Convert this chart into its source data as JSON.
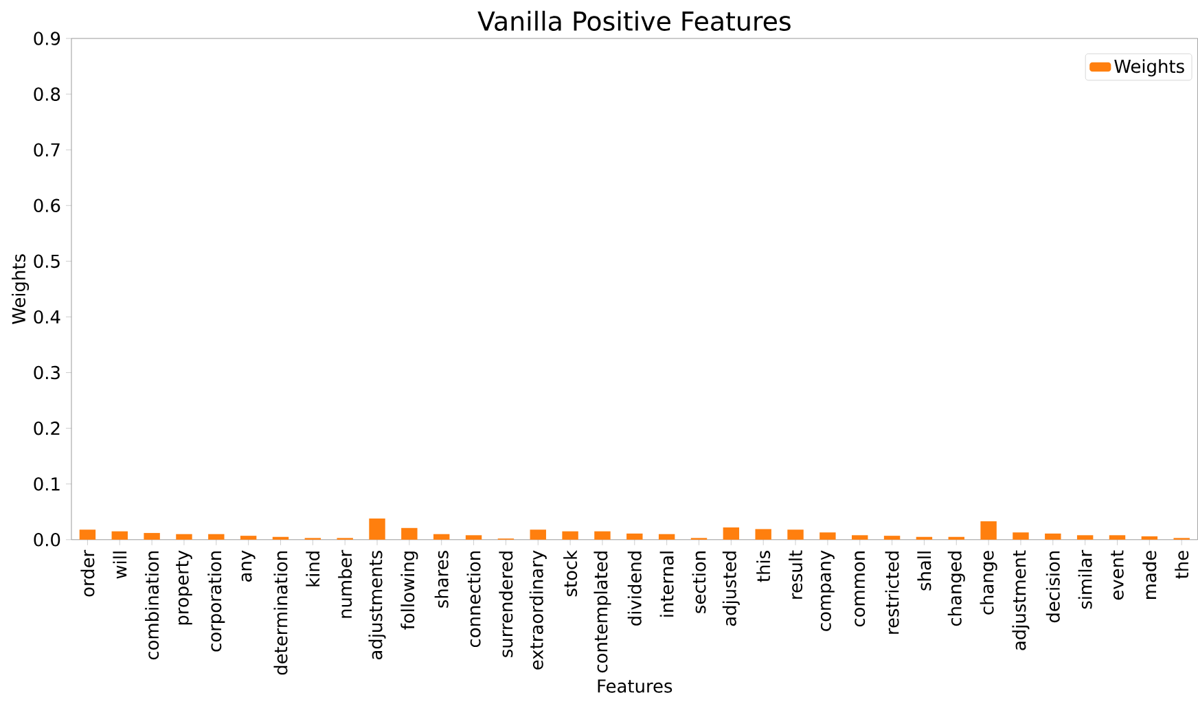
{
  "chart_data": {
    "type": "bar",
    "title": "Vanilla Positive Features",
    "xlabel": "Features",
    "ylabel": "Weights",
    "categories": [
      "order",
      "will",
      "combination",
      "property",
      "corporation",
      "any",
      "determination",
      "kind",
      "number",
      "adjustments",
      "following",
      "shares",
      "connection",
      "surrendered",
      "extraordinary",
      "stock",
      "contemplated",
      "dividend",
      "internal",
      "section",
      "adjusted",
      "this",
      "result",
      "company",
      "common",
      "restricted",
      "shall",
      "changed",
      "change",
      "adjustment",
      "decision",
      "similar",
      "event",
      "made",
      "the"
    ],
    "series": [
      {
        "name": "Weights",
        "color": "#ff7f0e",
        "values": [
          0.018,
          0.015,
          0.012,
          0.01,
          0.01,
          0.007,
          0.005,
          0.003,
          0.003,
          0.038,
          0.021,
          0.01,
          0.008,
          0.002,
          0.018,
          0.015,
          0.015,
          0.011,
          0.01,
          0.003,
          0.022,
          0.019,
          0.018,
          0.013,
          0.008,
          0.007,
          0.005,
          0.005,
          0.033,
          0.013,
          0.011,
          0.008,
          0.008,
          0.006,
          0.003
        ]
      }
    ],
    "ylim": [
      0,
      0.9
    ],
    "yticks": [
      {
        "value": 0,
        "label": "0.0"
      },
      0.1,
      0.2,
      0.3,
      0.4,
      0.5,
      0.6,
      0.7,
      0.8,
      0.9
    ],
    "legend": "top right"
  }
}
